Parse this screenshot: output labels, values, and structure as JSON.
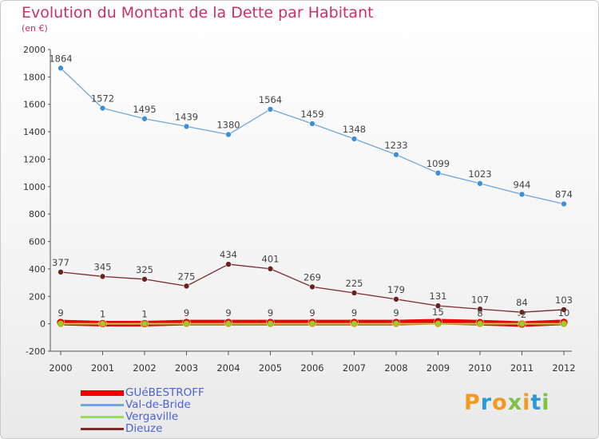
{
  "header": {
    "title": "Evolution du Montant de la Dette par Habitant",
    "subtitle": "(en €)"
  },
  "logo": {
    "text": "Proxiti",
    "colors": [
      "#f39a1e",
      "#2b9bd8",
      "#f39a1e",
      "#7fc142",
      "#f39a1e",
      "#2b9bd8",
      "#7fc142"
    ]
  },
  "chart_data": {
    "type": "line",
    "title": "Evolution du Montant de la Dette par Habitant",
    "subtitle": "(en €)",
    "xlabel": "",
    "ylabel": "",
    "x": [
      "2000",
      "2001",
      "2002",
      "2003",
      "2004",
      "2005",
      "2006",
      "2007",
      "2008",
      "2009",
      "2010",
      "2011",
      "2012"
    ],
    "ylim": [
      -200,
      2000
    ],
    "yticks": [
      -200,
      0,
      200,
      400,
      600,
      800,
      1000,
      1200,
      1400,
      1600,
      1800,
      2000
    ],
    "grid": false,
    "legend_position": "bottom-left",
    "series": [
      {
        "name": "GUéBESTROFF",
        "color": "#ee0000",
        "values": [
          9,
          1,
          1,
          9,
          9,
          9,
          9,
          9,
          9,
          15,
          8,
          -2,
          10
        ],
        "labels": [
          "9",
          "1",
          "1",
          "9",
          "9",
          "9",
          "9",
          "9",
          "9",
          "15",
          "8",
          "-2",
          "10"
        ]
      },
      {
        "name": "Val-de-Bride",
        "color": "#6fa8dc",
        "values": [
          1864,
          1572,
          1495,
          1439,
          1380,
          1564,
          1459,
          1348,
          1233,
          1099,
          1023,
          944,
          874
        ],
        "labels": [
          "1864",
          "1572",
          "1495",
          "1439",
          "1380",
          "1564",
          "1459",
          "1348",
          "1233",
          "1099",
          "1023",
          "944",
          "874"
        ]
      },
      {
        "name": "Vergaville",
        "color": "#99dd55",
        "values": [
          0,
          0,
          0,
          0,
          0,
          0,
          0,
          0,
          0,
          0,
          0,
          0,
          0
        ],
        "labels": []
      },
      {
        "name": "Dieuze",
        "color": "#7a2b2b",
        "values": [
          377,
          345,
          325,
          275,
          434,
          401,
          269,
          225,
          179,
          131,
          107,
          84,
          103
        ],
        "labels": [
          "377",
          "345",
          "325",
          "275",
          "434",
          "401",
          "269",
          "225",
          "179",
          "131",
          "107",
          "84",
          "103"
        ]
      }
    ]
  }
}
